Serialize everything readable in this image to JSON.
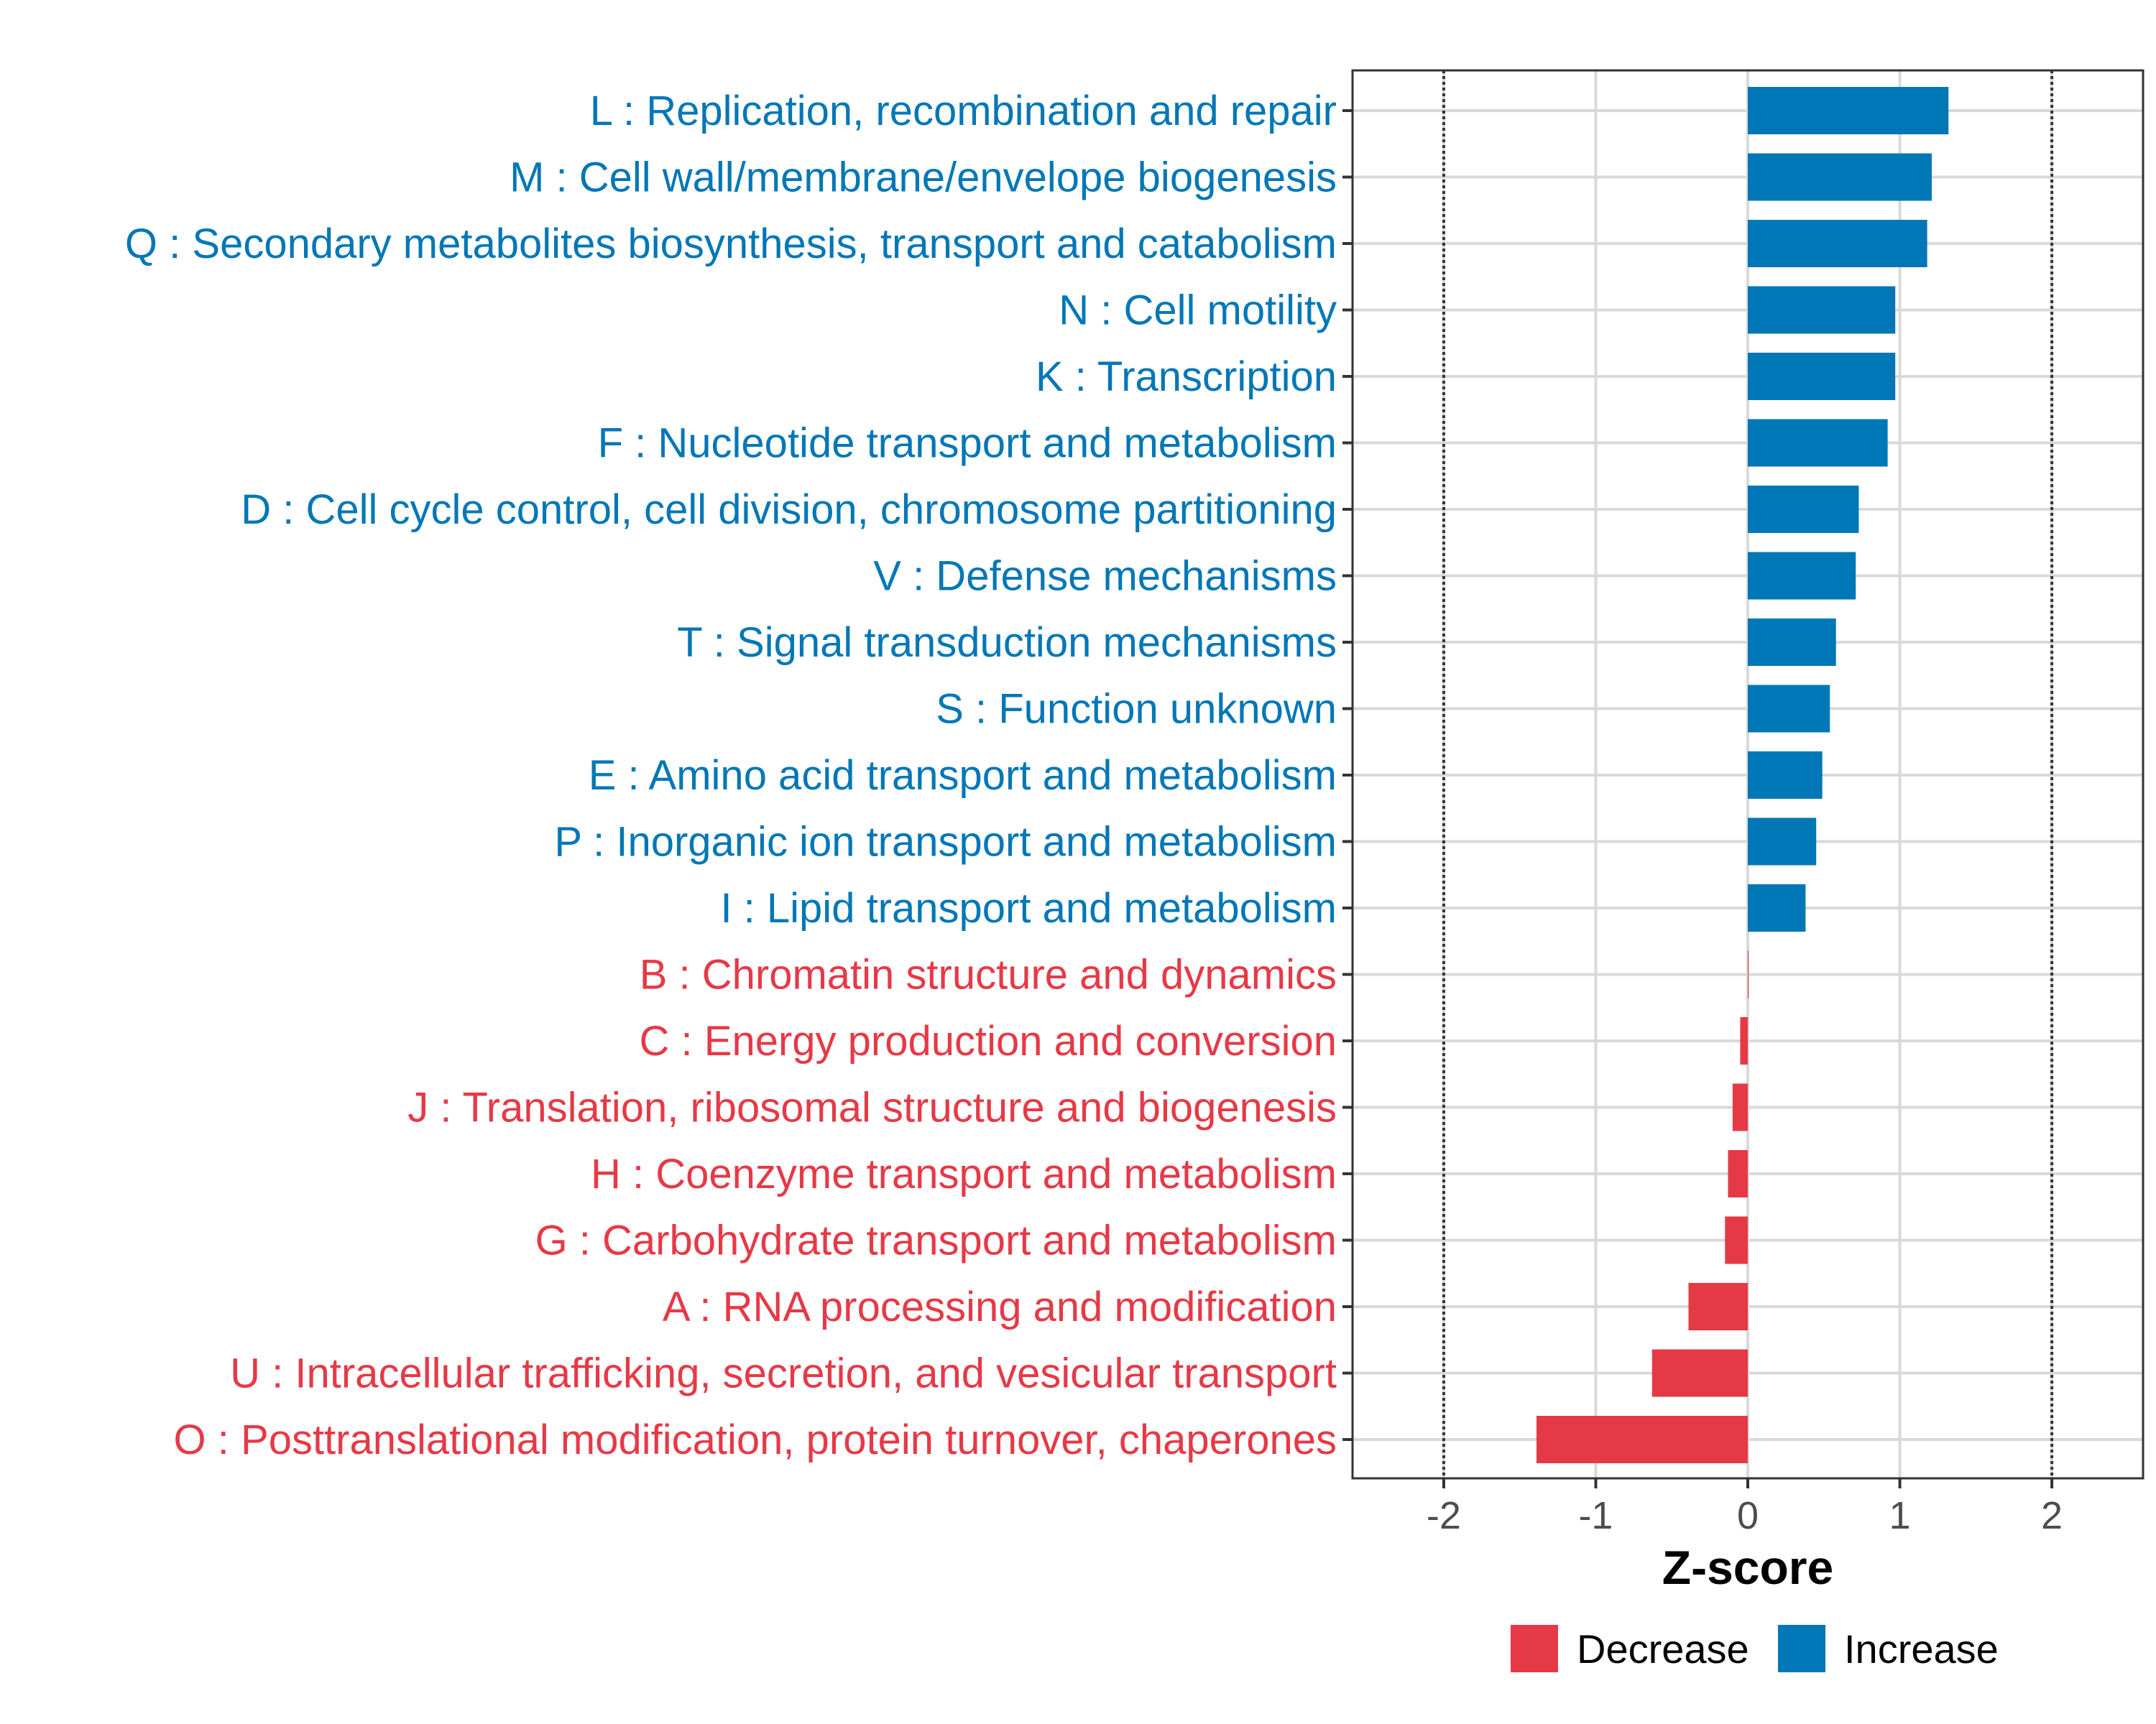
{
  "chart_data": {
    "type": "bar",
    "orientation": "horizontal",
    "xlabel": "Z-score",
    "xlim": [
      -2.6,
      2.6
    ],
    "xticks": [
      -2,
      -1,
      0,
      1,
      2
    ],
    "xtick_labels": [
      "-2",
      "-1",
      "0",
      "1",
      "2"
    ],
    "reference_lines": [
      -2,
      2
    ],
    "grid": true,
    "categories": [
      "L : Replication, recombination and repair",
      "M : Cell wall/membrane/envelope biogenesis",
      "Q : Secondary metabolites biosynthesis, transport and catabolism",
      "N : Cell motility",
      "K : Transcription",
      "F : Nucleotide transport and metabolism",
      "D : Cell cycle control, cell division, chromosome partitioning",
      "V : Defense mechanisms",
      "T : Signal transduction mechanisms",
      "S : Function unknown",
      "E : Amino acid transport and metabolism",
      "P : Inorganic ion transport and metabolism",
      "I : Lipid transport and metabolism",
      "B : Chromatin structure and dynamics",
      "C : Energy production and conversion",
      "J : Translation, ribosomal structure and biogenesis",
      "H : Coenzyme transport and metabolism",
      "G : Carbohydrate transport and metabolism",
      "A : RNA processing and modification",
      "U : Intracellular trafficking, secretion, and vesicular transport",
      "O : Posttranslational modification, protein turnover, chaperones"
    ],
    "values": [
      1.32,
      1.21,
      1.18,
      0.97,
      0.97,
      0.92,
      0.73,
      0.71,
      0.58,
      0.54,
      0.49,
      0.45,
      0.38,
      0.005,
      -0.05,
      -0.1,
      -0.13,
      -0.15,
      -0.39,
      -0.63,
      -1.39
    ],
    "groups": [
      "Increase",
      "Increase",
      "Increase",
      "Increase",
      "Increase",
      "Increase",
      "Increase",
      "Increase",
      "Increase",
      "Increase",
      "Increase",
      "Increase",
      "Increase",
      "Decrease",
      "Decrease",
      "Decrease",
      "Decrease",
      "Decrease",
      "Decrease",
      "Decrease",
      "Decrease"
    ],
    "legend": {
      "position": "bottom",
      "entries": [
        {
          "label": "Decrease",
          "color": "#e63946"
        },
        {
          "label": "Increase",
          "color": "#0077b6"
        }
      ]
    },
    "colors": {
      "Increase": "#0077b6",
      "Decrease": "#e63946"
    }
  }
}
